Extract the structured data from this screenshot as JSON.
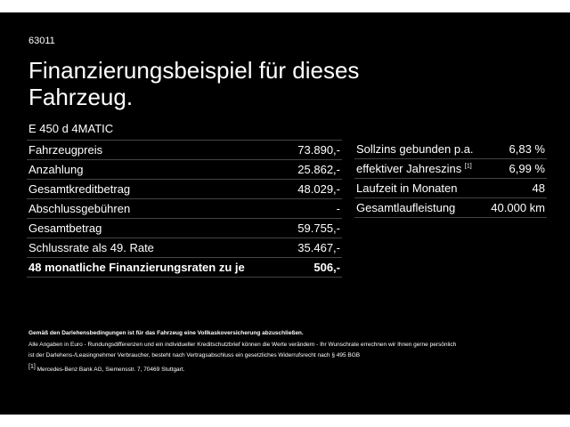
{
  "header": {
    "code": "63011",
    "title": "Finanzierungsbeispiel für dieses Fahrzeug.",
    "model": "E 450 d 4MATIC"
  },
  "left_table": {
    "rows": [
      [
        "Fahrzeugpreis",
        "73.890,-"
      ],
      [
        "Anzahlung",
        "25.862,-"
      ],
      [
        "Gesamtkreditbetrag",
        "48.029,-"
      ],
      [
        "Abschlussgebühren",
        "-"
      ],
      [
        "Gesamtbetrag",
        "59.755,-"
      ],
      [
        "Schlussrate als 49. Rate",
        "35.467,-"
      ],
      [
        "48 monatliche Finanzierungsraten zu je",
        "506,-"
      ]
    ]
  },
  "right_table": {
    "rows": [
      {
        "label": "Sollzins gebunden p.a.",
        "value": "6,83 %"
      },
      {
        "label": "effektiver Jahreszins",
        "note": "[1]",
        "value": "6,99 %"
      },
      {
        "label": "Laufzeit in Monaten",
        "value": "48"
      },
      {
        "label": "Gesamtlaufleistung",
        "value": "40.000 km"
      }
    ]
  },
  "footer": {
    "bold_note": "Gemäß den Darlehensbedingungen ist für das Fahrzeug eine Vollkaskoversicherung abzuschließen.",
    "lines": [
      "Alle Angaben in Euro - Rundungsdifferenzen und ein individueller Kreditschutzbrief können die Werte verändern - Ihr Wunschrate errechnen wir Ihnen gerne persönlich",
      "ist der Darlehens-/Leasingnehmer Verbraucher, besteht nach Vertragsabschluss ein gesetzliches Widerrufsrecht nach § 495 BGB"
    ],
    "footnote": {
      "marker": "[1]",
      "text": "Mercedes-Benz Bank AG, Siemensstr. 7, 70469 Stuttgart."
    }
  }
}
